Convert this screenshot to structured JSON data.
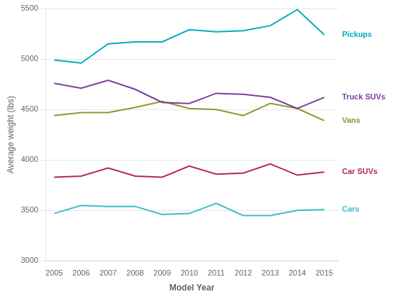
{
  "chart_data": {
    "type": "line",
    "x": [
      2005,
      2006,
      2007,
      2008,
      2009,
      2010,
      2011,
      2012,
      2013,
      2014,
      2015
    ],
    "series": [
      {
        "name": "Pickups",
        "color": "#00AEBB",
        "values": [
          4990,
          4960,
          5150,
          5170,
          5170,
          5290,
          5270,
          5280,
          5330,
          5490,
          5240
        ]
      },
      {
        "name": "Truck SUVs",
        "color": "#7B3F9E",
        "values": [
          4760,
          4710,
          4790,
          4700,
          4570,
          4560,
          4660,
          4650,
          4620,
          4510,
          4620
        ]
      },
      {
        "name": "Vans",
        "color": "#8B9B2C",
        "values": [
          4440,
          4470,
          4470,
          4520,
          4580,
          4510,
          4500,
          4440,
          4560,
          4510,
          4390
        ]
      },
      {
        "name": "Car SUVs",
        "color": "#B5294A",
        "values": [
          3830,
          3840,
          3920,
          3840,
          3830,
          3940,
          3860,
          3870,
          3960,
          3850,
          3880
        ]
      },
      {
        "name": "Cars",
        "color": "#3BBEC9",
        "values": [
          3470,
          3550,
          3540,
          3540,
          3460,
          3470,
          3570,
          3450,
          3450,
          3500,
          3510
        ]
      }
    ],
    "xlabel": "Model Year",
    "ylabel": "Average weight (lbs)",
    "xlim": [
      2004.7,
      2015.5
    ],
    "xticks": [
      2005,
      2006,
      2007,
      2008,
      2009,
      2010,
      2011,
      2012,
      2013,
      2014,
      2015
    ],
    "ylim": [
      3000,
      5500
    ],
    "yticks": [
      3000,
      3500,
      4000,
      4500,
      5000,
      5500
    ],
    "grid": "y"
  }
}
